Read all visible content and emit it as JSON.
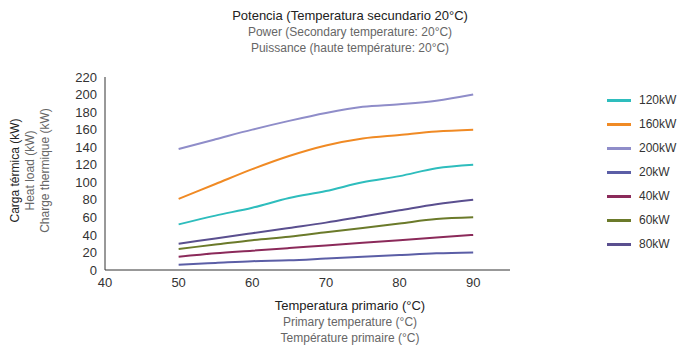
{
  "chart_data": {
    "type": "line",
    "title": [
      "Potencia (Temperatura secundario 20°C)",
      "Power (Secondary temperature: 20°C)",
      "Puissance (haute température: 20°C)"
    ],
    "x_label": [
      "Temperatura primario (°C)",
      "Primary temperature (°C)",
      "Température primaire (°C)"
    ],
    "y_label": [
      "Carga térmica (kW)",
      "Heat load (kW)",
      "Charge thermique (kW)"
    ],
    "x": [
      50,
      55,
      60,
      65,
      70,
      75,
      80,
      85,
      90
    ],
    "series": [
      {
        "name": "200kW",
        "color": "#8f8dc9",
        "values": [
          138,
          149,
          160,
          170,
          179,
          186,
          189,
          193,
          200
        ]
      },
      {
        "name": "160kW",
        "color": "#f08a24",
        "values": [
          81,
          98,
          115,
          130,
          142,
          150,
          154,
          158,
          160
        ]
      },
      {
        "name": "120kW",
        "color": "#2ebdbd",
        "values": [
          52,
          62,
          71,
          82,
          90,
          100,
          107,
          116,
          120
        ]
      },
      {
        "name": "80kW",
        "color": "#5a4f8f",
        "values": [
          30,
          36,
          42,
          48,
          54,
          61,
          68,
          75,
          80
        ]
      },
      {
        "name": "60kW",
        "color": "#6b7a2a",
        "values": [
          24,
          29,
          34,
          38,
          43,
          48,
          53,
          58,
          60
        ]
      },
      {
        "name": "40kW",
        "color": "#8b2a5a",
        "values": [
          15,
          19,
          22,
          25,
          28,
          31,
          34,
          37,
          40
        ]
      },
      {
        "name": "20kW",
        "color": "#5b5ea6",
        "values": [
          6,
          8,
          10,
          11,
          13,
          15,
          17,
          19,
          20
        ]
      }
    ],
    "xlim": [
      40,
      95
    ],
    "xticks": [
      40,
      50,
      60,
      70,
      80,
      90
    ],
    "ylim": [
      0,
      220
    ],
    "yticks": [
      0,
      20,
      40,
      60,
      80,
      100,
      120,
      140,
      160,
      180,
      200,
      220
    ],
    "grid": false,
    "legend": "right"
  }
}
